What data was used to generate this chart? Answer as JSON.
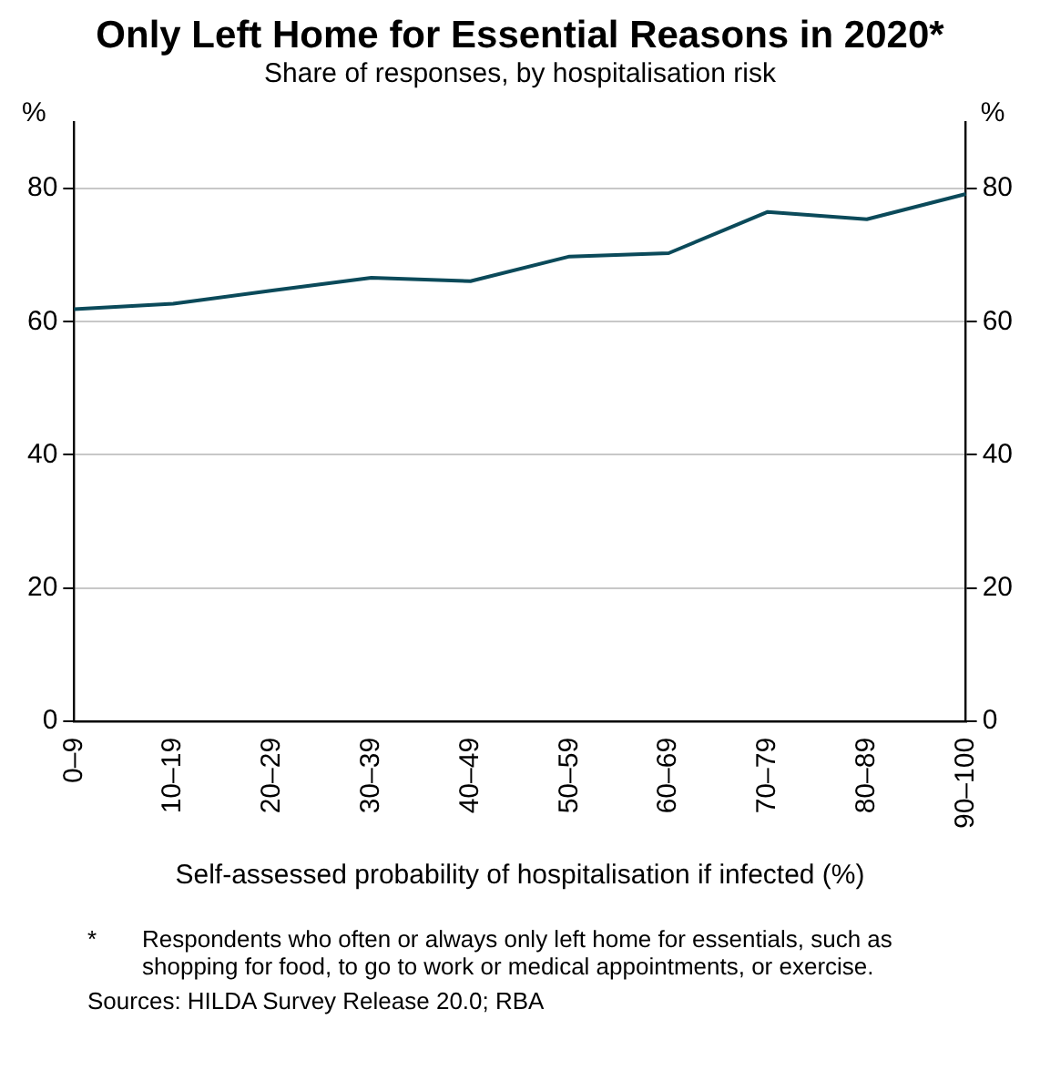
{
  "chart_data": {
    "type": "line",
    "title": "Only Left Home for Essential Reasons in 2020*",
    "subtitle": "Share of responses, by hospitalisation risk",
    "xlabel": "Self-assessed probability of hospitalisation if infected (%)",
    "ylabel": "%",
    "y2label": "%",
    "categories": [
      "0–9",
      "10–19",
      "20–29",
      "30–39",
      "40–49",
      "50–59",
      "60–69",
      "70–79",
      "80–89",
      "90–100"
    ],
    "series": [
      {
        "color": "#0b4a5a",
        "values": [
          61.9,
          62.7,
          64.7,
          66.6,
          66.1,
          69.8,
          70.3,
          76.5,
          75.4,
          79.2
        ]
      }
    ],
    "ylim": [
      0,
      90
    ],
    "yticks": [
      0,
      20,
      40,
      60,
      80
    ],
    "y2lim": [
      0,
      90
    ],
    "y2ticks": [
      0,
      20,
      40,
      60,
      80
    ],
    "grid": "y",
    "legend": false,
    "marker": "none",
    "line_style": "solid",
    "annotations": [
      "*\tRespondents who often or always only left home for essentials, such as shopping for food, to go to work or medical appointments, or exercise.",
      "Sources: HILDA Survey Release 20.0; RBA"
    ]
  }
}
